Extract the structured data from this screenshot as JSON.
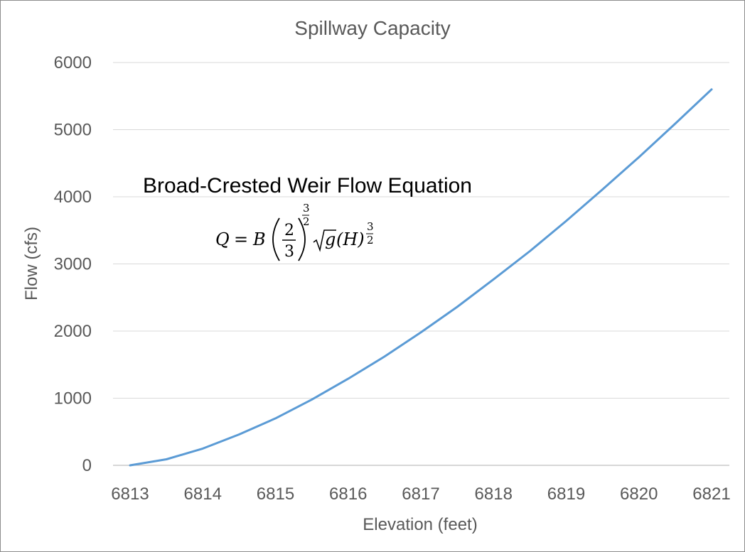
{
  "chart_data": {
    "type": "line",
    "title": "Spillway Capacity",
    "xlabel": "Elevation (feet)",
    "ylabel": "Flow (cfs)",
    "xlim": [
      6813,
      6821
    ],
    "ylim": [
      0,
      6000
    ],
    "x_ticks": [
      6813,
      6814,
      6815,
      6816,
      6817,
      6818,
      6819,
      6820,
      6821
    ],
    "y_ticks": [
      0,
      1000,
      2000,
      3000,
      4000,
      5000,
      6000
    ],
    "grid": true,
    "legend": "none",
    "series": [
      {
        "x": [
          6813,
          6813.5,
          6814,
          6814.5,
          6815,
          6815.5,
          6816,
          6816.5,
          6817,
          6817.5,
          6818,
          6818.5,
          6819,
          6819.5,
          6820,
          6820.5,
          6821
        ],
        "y": [
          0,
          90,
          250,
          460,
          700,
          980,
          1290,
          1620,
          1980,
          2360,
          2770,
          3190,
          3640,
          4110,
          4590,
          5090,
          5600
        ]
      }
    ],
    "annotation": {
      "title": "Broad-Crested Weir Flow Equation",
      "equation": {
        "lhs": "Q",
        "equals": "=",
        "coef": "B",
        "frac_num": "2",
        "frac_den": "3",
        "exp_num": "3",
        "exp_den": "2",
        "sqrt_arg": "g",
        "paren_arg": "(H)",
        "exp2_num": "3",
        "exp2_den": "2"
      }
    }
  }
}
